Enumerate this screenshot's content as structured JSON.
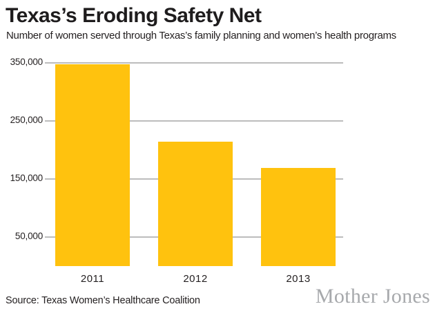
{
  "chart_data": {
    "type": "bar",
    "title": "Texas’s Eroding Safety Net",
    "subtitle": "Number of women served through Texas’s family planning and women’s health programs",
    "categories": [
      "2011",
      "2012",
      "2013"
    ],
    "values": [
      348000,
      214000,
      169000
    ],
    "xlabel": "",
    "ylabel": "",
    "ylim": [
      0,
      350000
    ],
    "yticks": [
      350000,
      250000,
      150000,
      50000
    ],
    "ytick_labels": [
      "350,000",
      "250,000",
      "150,000",
      "50,000"
    ],
    "grid": true,
    "legend": false,
    "bar_color": "#FFC20E",
    "gridline_color": "#BCBCBC",
    "text_color": "#231F20"
  },
  "footer": {
    "source": "Source: Texas Women’s Healthcare Coalition",
    "brand": "Mother Jones",
    "brand_color": "#A7A9AC"
  }
}
